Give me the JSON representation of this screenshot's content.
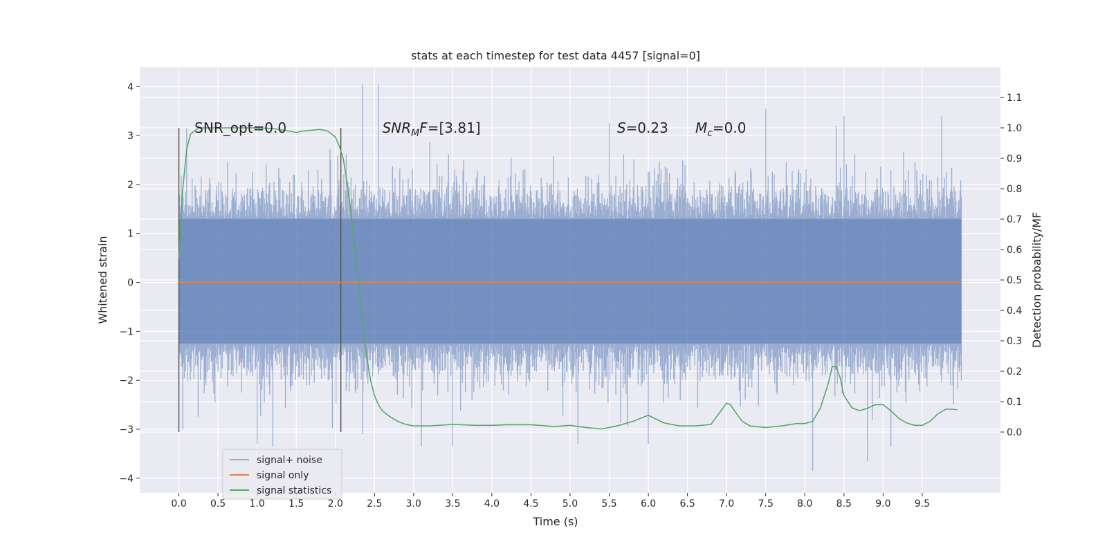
{
  "chart_data": {
    "type": "line",
    "title": "stats at each timestep for test data 4457 [signal=0]",
    "xlabel": "Time (s)",
    "ylabel_left": "Whitened strain",
    "ylabel_right": "Detection probability/MF",
    "xlim": [
      -0.5,
      10.5
    ],
    "ylim_left": [
      -4.3,
      4.4
    ],
    "ylim_right": [
      -0.2,
      1.2
    ],
    "xticks": [
      0.0,
      0.5,
      1.0,
      1.5,
      2.0,
      2.5,
      3.0,
      3.5,
      4.0,
      4.5,
      5.0,
      5.5,
      6.0,
      6.5,
      7.0,
      7.5,
      8.0,
      8.5,
      9.0,
      9.5
    ],
    "xtick_labels": [
      "0.0",
      "0.5",
      "1.0",
      "1.5",
      "2.0",
      "2.5",
      "3.0",
      "3.5",
      "4.0",
      "4.5",
      "5.0",
      "5.5",
      "6.0",
      "6.5",
      "7.0",
      "7.5",
      "8.0",
      "8.5",
      "9.0",
      "9.5"
    ],
    "yticks_left": [
      -4,
      -3,
      -2,
      -1,
      0,
      1,
      2,
      3,
      4
    ],
    "ytick_labels_left": [
      "−4",
      "−3",
      "−2",
      "−1",
      "0",
      "1",
      "2",
      "3",
      "4"
    ],
    "yticks_right": [
      0.0,
      0.1,
      0.2,
      0.3,
      0.4,
      0.5,
      0.6,
      0.7,
      0.8,
      0.9,
      1.0,
      1.1
    ],
    "ytick_labels_right": [
      "0.0",
      "0.1",
      "0.2",
      "0.3",
      "0.4",
      "0.5",
      "0.6",
      "0.7",
      "0.8",
      "0.9",
      "1.0",
      "1.1"
    ],
    "grid": true,
    "legend_placement": "lower-left",
    "annotations": [
      {
        "text_parts": [
          {
            "t": "SNR_opt=0.0",
            "style": "normal"
          }
        ],
        "x": 0.2,
        "y_right": 1.0
      },
      {
        "text_parts": [
          {
            "t": "SNR",
            "style": "italic"
          },
          {
            "t": "M",
            "style": "italic-sub"
          },
          {
            "t": "F",
            "style": "italic"
          },
          {
            "t": "=[3.81]",
            "style": "normal"
          }
        ],
        "x": 2.6,
        "y_right": 1.0
      },
      {
        "text_parts": [
          {
            "t": "S",
            "style": "italic"
          },
          {
            "t": "=0.23",
            "style": "normal"
          }
        ],
        "x": 5.6,
        "y_right": 1.0
      },
      {
        "text_parts": [
          {
            "t": "M",
            "style": "italic"
          },
          {
            "t": "c",
            "style": "italic-sub"
          },
          {
            "t": "=0.0",
            "style": "normal"
          }
        ],
        "x": 6.6,
        "y_right": 1.0
      }
    ],
    "vertical_markers": {
      "x": [
        0.0,
        2.07
      ],
      "y_right": [
        0.0,
        1.0
      ],
      "color": "#555555"
    },
    "series": [
      {
        "name": "signal+ noise",
        "axis": "left",
        "color": "#4c72b0",
        "opacity": 0.5,
        "x_range": [
          0.0,
          10.0
        ],
        "band_core": [
          -1.25,
          1.3
        ],
        "typical_envelope": [
          -2.2,
          2.2
        ],
        "peaks": [
          [
            0.05,
            -3.0
          ],
          [
            0.1,
            3.15
          ],
          [
            1.0,
            -3.3
          ],
          [
            1.2,
            -3.35
          ],
          [
            2.35,
            4.05
          ],
          [
            2.55,
            4.05
          ],
          [
            2.35,
            -3.1
          ],
          [
            3.1,
            -3.35
          ],
          [
            3.5,
            -3.35
          ],
          [
            5.1,
            -3.3
          ],
          [
            5.5,
            3.25
          ],
          [
            6.0,
            -3.3
          ],
          [
            7.5,
            3.55
          ],
          [
            8.1,
            -3.85
          ],
          [
            8.4,
            3.2
          ],
          [
            8.5,
            3.4
          ],
          [
            8.8,
            -3.65
          ],
          [
            9.1,
            -3.35
          ],
          [
            9.75,
            3.4
          ]
        ]
      },
      {
        "name": "signal only",
        "axis": "left",
        "color": "#dd8452",
        "x": [
          0.0,
          10.0
        ],
        "y": [
          0.0,
          0.0
        ]
      },
      {
        "name": "signal statistics",
        "axis": "right",
        "color": "#55a868",
        "x": [
          0.0,
          0.05,
          0.1,
          0.15,
          0.25,
          0.4,
          0.6,
          0.8,
          1.0,
          1.2,
          1.4,
          1.5,
          1.6,
          1.8,
          1.9,
          2.0,
          2.05,
          2.1,
          2.15,
          2.2,
          2.25,
          2.3,
          2.35,
          2.4,
          2.45,
          2.5,
          2.55,
          2.6,
          2.7,
          2.8,
          2.9,
          3.0,
          3.2,
          3.5,
          3.8,
          4.0,
          4.2,
          4.5,
          4.8,
          5.0,
          5.2,
          5.4,
          5.6,
          5.8,
          6.0,
          6.2,
          6.4,
          6.6,
          6.8,
          6.9,
          7.0,
          7.05,
          7.1,
          7.2,
          7.3,
          7.5,
          7.7,
          7.9,
          8.0,
          8.1,
          8.2,
          8.3,
          8.35,
          8.4,
          8.45,
          8.5,
          8.6,
          8.7,
          8.8,
          8.9,
          9.0,
          9.1,
          9.2,
          9.3,
          9.4,
          9.5,
          9.6,
          9.7,
          9.8,
          9.9,
          9.95
        ],
        "y": [
          0.57,
          0.8,
          0.93,
          0.98,
          1.0,
          1.0,
          1.0,
          1.0,
          1.0,
          0.998,
          0.99,
          0.985,
          0.99,
          0.995,
          0.99,
          0.97,
          0.94,
          0.9,
          0.82,
          0.72,
          0.6,
          0.48,
          0.35,
          0.25,
          0.17,
          0.12,
          0.09,
          0.07,
          0.05,
          0.035,
          0.025,
          0.02,
          0.02,
          0.025,
          0.022,
          0.022,
          0.024,
          0.024,
          0.018,
          0.022,
          0.015,
          0.01,
          0.02,
          0.035,
          0.055,
          0.03,
          0.02,
          0.02,
          0.025,
          0.06,
          0.095,
          0.09,
          0.07,
          0.035,
          0.02,
          0.015,
          0.02,
          0.028,
          0.028,
          0.035,
          0.08,
          0.16,
          0.215,
          0.215,
          0.18,
          0.12,
          0.08,
          0.07,
          0.078,
          0.09,
          0.09,
          0.07,
          0.045,
          0.03,
          0.022,
          0.022,
          0.035,
          0.06,
          0.075,
          0.075,
          0.073
        ]
      }
    ]
  }
}
